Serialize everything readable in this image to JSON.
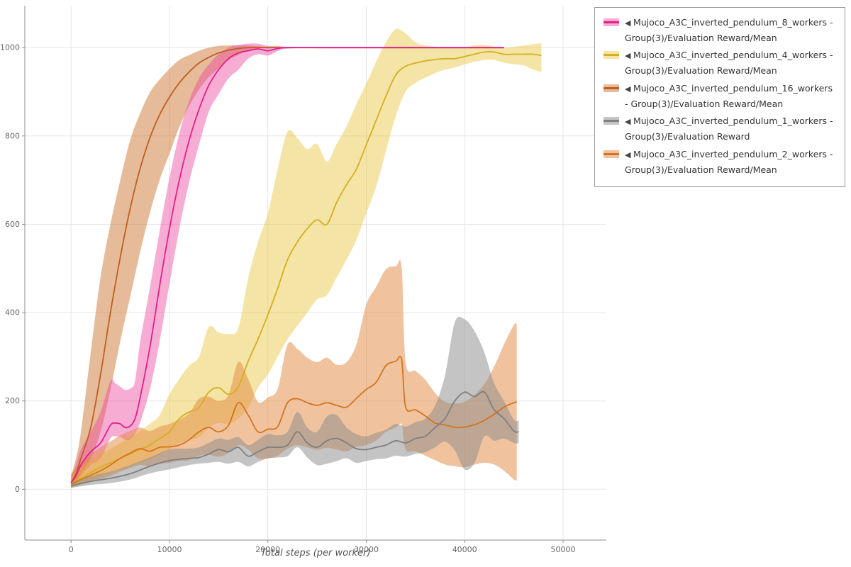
{
  "legend": {
    "marker": "◀"
  },
  "chart_data": {
    "type": "line",
    "title": "",
    "xlabel": "Total steps (per worker)",
    "ylabel": "",
    "xlim": [
      -4700,
      54400
    ],
    "ylim": [
      -115,
      1095
    ],
    "xticks": [
      0,
      10000,
      20000,
      30000,
      40000,
      50000
    ],
    "yticks": [
      0,
      200,
      400,
      600,
      800,
      1000
    ],
    "grid": true,
    "legend_position": "top-right",
    "draw_order": [
      2,
      0,
      1,
      4,
      3
    ],
    "series": [
      {
        "name": "Mujoco_A3C_inverted_pendulum_8_workers - Group(3)/Evaluation Reward/Mean",
        "color": "#e0218a",
        "band_color": "rgba(238, 70, 160, 0.45)",
        "x": [
          0,
          500,
          1000,
          2000,
          3000,
          4000,
          4500,
          5000,
          5500,
          6000,
          6500,
          7000,
          8000,
          9000,
          10000,
          11000,
          12000,
          13000,
          14000,
          15000,
          16000,
          17000,
          18000,
          19000,
          20000,
          21000,
          22000,
          26000,
          30000,
          34000,
          38000,
          42000,
          44000
        ],
        "mean": [
          15,
          30,
          55,
          85,
          105,
          145,
          150,
          148,
          140,
          143,
          160,
          205,
          320,
          460,
          590,
          700,
          790,
          860,
          915,
          950,
          975,
          988,
          993,
          997,
          993,
          998,
          1000,
          1000,
          1000,
          1000,
          1000,
          1000,
          1000
        ],
        "low": [
          5,
          15,
          30,
          55,
          70,
          115,
          120,
          118,
          112,
          112,
          125,
          150,
          225,
          335,
          465,
          590,
          695,
          780,
          855,
          895,
          930,
          950,
          975,
          985,
          982,
          992,
          998,
          1000,
          1000,
          1000,
          1000,
          1000,
          1000
        ],
        "high": [
          25,
          55,
          90,
          130,
          175,
          245,
          240,
          232,
          225,
          228,
          245,
          330,
          455,
          585,
          705,
          805,
          880,
          930,
          962,
          985,
          1000,
          1006,
          1009,
          1009,
          1004,
          1004,
          1002,
          1000,
          1000,
          1000,
          1000,
          1000,
          1000
        ]
      },
      {
        "name": "Mujoco_A3C_inverted_pendulum_4_workers - Group(3)/Evaluation Reward/Mean",
        "color": "#d3b01e",
        "band_color": "rgba(230, 196, 58, 0.45)",
        "x": [
          0,
          1000,
          2000,
          3000,
          4000,
          5000,
          6000,
          7000,
          8000,
          9000,
          10000,
          11000,
          12000,
          13000,
          14000,
          15000,
          16000,
          17000,
          18000,
          19000,
          20000,
          21000,
          22000,
          23000,
          24000,
          25000,
          26000,
          27000,
          28000,
          29000,
          30000,
          31000,
          32000,
          33000,
          34000,
          35000,
          36000,
          37000,
          38000,
          39000,
          40000,
          41000,
          42000,
          43000,
          44000,
          45000,
          46000,
          47000,
          47800
        ],
        "mean": [
          12,
          25,
          38,
          50,
          60,
          70,
          80,
          90,
          100,
          115,
          130,
          160,
          175,
          185,
          220,
          230,
          215,
          232,
          290,
          340,
          395,
          455,
          520,
          560,
          590,
          610,
          600,
          650,
          690,
          725,
          780,
          835,
          890,
          938,
          958,
          965,
          970,
          973,
          975,
          975,
          980,
          985,
          990,
          990,
          985,
          985,
          985,
          985,
          982
        ],
        "low": [
          4,
          12,
          20,
          28,
          38,
          45,
          52,
          60,
          68,
          78,
          90,
          105,
          112,
          118,
          140,
          150,
          148,
          160,
          185,
          230,
          260,
          300,
          340,
          370,
          400,
          430,
          440,
          480,
          520,
          565,
          625,
          685,
          765,
          845,
          900,
          920,
          932,
          942,
          950,
          955,
          962,
          968,
          972,
          972,
          966,
          962,
          960,
          950,
          945
        ],
        "high": [
          28,
          48,
          65,
          80,
          92,
          105,
          118,
          132,
          148,
          168,
          215,
          250,
          280,
          300,
          368,
          355,
          352,
          365,
          478,
          560,
          625,
          725,
          810,
          795,
          770,
          782,
          742,
          782,
          822,
          872,
          918,
          968,
          1012,
          1042,
          1032,
          1012,
          1005,
          1002,
          1000,
          1000,
          1000,
          1005,
          1006,
          1002,
          1000,
          1002,
          1005,
          1008,
          1010
        ]
      },
      {
        "name": "Mujoco_A3C_inverted_pendulum_16_workers - Group(3)/Evaluation Reward/Mean",
        "color": "#bf5f1e",
        "band_color": "rgba(206, 120, 52, 0.5)",
        "x": [
          0,
          500,
          1000,
          2000,
          3000,
          4000,
          5000,
          6000,
          7000,
          8000,
          9000,
          10000,
          11000,
          12000,
          13000,
          14000,
          15000,
          16000,
          17000,
          18000,
          20000,
          24000,
          28000,
          32000,
          36000,
          40000,
          44000
        ],
        "mean": [
          15,
          35,
          70,
          140,
          260,
          400,
          525,
          635,
          725,
          795,
          848,
          888,
          920,
          945,
          965,
          978,
          988,
          994,
          998,
          1000,
          1000,
          1000,
          1000,
          1000,
          1000,
          1000,
          1000
        ],
        "low": [
          5,
          15,
          35,
          70,
          130,
          225,
          335,
          435,
          535,
          625,
          700,
          760,
          820,
          868,
          905,
          933,
          953,
          972,
          983,
          993,
          1000,
          1000,
          1000,
          1000,
          1000,
          1000,
          1000
        ],
        "high": [
          30,
          70,
          130,
          310,
          480,
          600,
          700,
          790,
          850,
          898,
          928,
          952,
          972,
          983,
          993,
          1000,
          1004,
          1005,
          1005,
          1005,
          1002,
          1000,
          1000,
          1000,
          1000,
          1000,
          1000
        ]
      },
      {
        "name": "Mujoco_A3C_inverted_pendulum_1_workers - Group(3)/Evaluation Reward",
        "color": "#7f7f7f",
        "band_color": "rgba(138, 138, 138, 0.5)",
        "x": [
          0,
          2000,
          4000,
          6000,
          8000,
          10000,
          12000,
          13000,
          14000,
          15000,
          16000,
          17000,
          18000,
          19000,
          20000,
          21000,
          22000,
          23000,
          24000,
          25000,
          26000,
          27000,
          28000,
          29000,
          30000,
          31000,
          32000,
          33000,
          34000,
          35000,
          36000,
          37000,
          38000,
          39000,
          40000,
          41000,
          42000,
          43000,
          44000,
          45000,
          45500
        ],
        "mean": [
          8,
          18,
          25,
          35,
          52,
          65,
          70,
          72,
          80,
          90,
          85,
          95,
          75,
          85,
          95,
          95,
          100,
          130,
          105,
          95,
          110,
          115,
          105,
          92,
          90,
          95,
          100,
          110,
          105,
          115,
          120,
          140,
          160,
          200,
          220,
          210,
          220,
          180,
          160,
          132,
          130
        ],
        "low": [
          3,
          10,
          14,
          22,
          36,
          45,
          55,
          58,
          60,
          62,
          58,
          62,
          52,
          62,
          70,
          72,
          75,
          95,
          72,
          55,
          58,
          64,
          70,
          60,
          64,
          68,
          70,
          76,
          74,
          80,
          84,
          95,
          108,
          88,
          45,
          60,
          120,
          110,
          115,
          105,
          104
        ],
        "high": [
          16,
          30,
          40,
          55,
          72,
          90,
          92,
          95,
          105,
          115,
          112,
          118,
          100,
          112,
          125,
          122,
          130,
          175,
          140,
          130,
          165,
          168,
          140,
          125,
          120,
          128,
          135,
          148,
          142,
          152,
          160,
          190,
          258,
          378,
          385,
          358,
          310,
          240,
          200,
          158,
          156
        ]
      },
      {
        "name": "Mujoco_A3C_inverted_pendulum_2_workers - Group(3)/Evaluation Reward/Mean",
        "color": "#d4741e",
        "band_color": "rgba(226, 136, 62, 0.5)",
        "x": [
          0,
          1000,
          2000,
          3000,
          4000,
          5000,
          6000,
          7000,
          8000,
          9000,
          10000,
          11000,
          12000,
          13000,
          14000,
          15000,
          16000,
          17000,
          18000,
          19000,
          20000,
          21000,
          22000,
          23000,
          24000,
          25000,
          26000,
          27000,
          28000,
          29000,
          30000,
          31000,
          32000,
          33000,
          33600,
          34000,
          35000,
          36000,
          37000,
          38000,
          39000,
          40000,
          41000,
          42000,
          43000,
          44000,
          45000,
          45300
        ],
        "mean": [
          12,
          22,
          32,
          42,
          55,
          70,
          82,
          92,
          86,
          95,
          96,
          100,
          112,
          130,
          140,
          130,
          145,
          196,
          168,
          130,
          136,
          142,
          196,
          205,
          196,
          190,
          196,
          190,
          186,
          206,
          226,
          242,
          280,
          290,
          294,
          186,
          180,
          166,
          150,
          146,
          140,
          141,
          146,
          156,
          170,
          186,
          196,
          198
        ],
        "low": [
          4,
          10,
          16,
          24,
          30,
          40,
          48,
          55,
          52,
          58,
          60,
          64,
          66,
          76,
          78,
          74,
          82,
          100,
          90,
          70,
          70,
          76,
          92,
          100,
          95,
          90,
          94,
          90,
          86,
          96,
          100,
          110,
          130,
          140,
          146,
          90,
          86,
          76,
          66,
          56,
          52,
          50,
          56,
          60,
          56,
          42,
          22,
          20
        ],
        "high": [
          35,
          60,
          80,
          95,
          108,
          122,
          132,
          140,
          132,
          142,
          148,
          158,
          172,
          205,
          210,
          200,
          214,
          288,
          250,
          198,
          208,
          228,
          328,
          318,
          298,
          288,
          298,
          282,
          288,
          328,
          418,
          458,
          498,
          505,
          502,
          288,
          268,
          248,
          218,
          198,
          194,
          198,
          214,
          238,
          278,
          328,
          372,
          374
        ]
      }
    ]
  }
}
